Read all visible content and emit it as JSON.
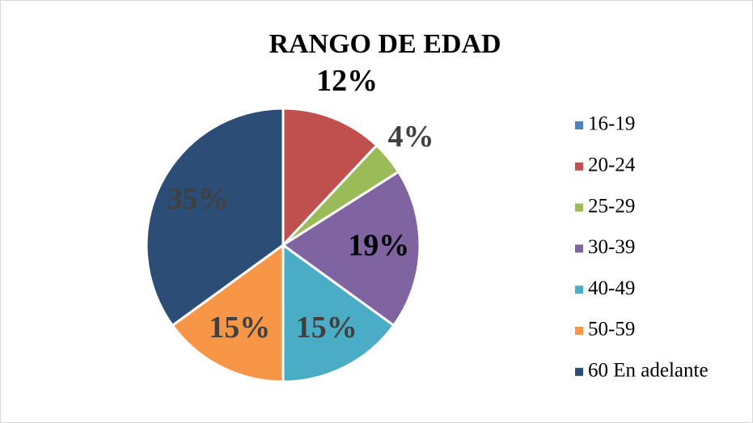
{
  "chart_data": {
    "type": "pie",
    "title": "RANGO DE EDAD",
    "categories": [
      "16-19",
      "20-24",
      "25-29",
      "30-39",
      "40-49",
      "50-59",
      "60 En adelante"
    ],
    "values": [
      0,
      12,
      4,
      19,
      15,
      15,
      35
    ],
    "value_labels": [
      null,
      "12%",
      "4%",
      "19%",
      "15%",
      "15%",
      "35%"
    ],
    "colors": [
      "#4f81bd",
      "#c0504d",
      "#9bbb59",
      "#8064a2",
      "#4bacc6",
      "#f79646",
      "#2c4d75"
    ],
    "legend": "right"
  }
}
